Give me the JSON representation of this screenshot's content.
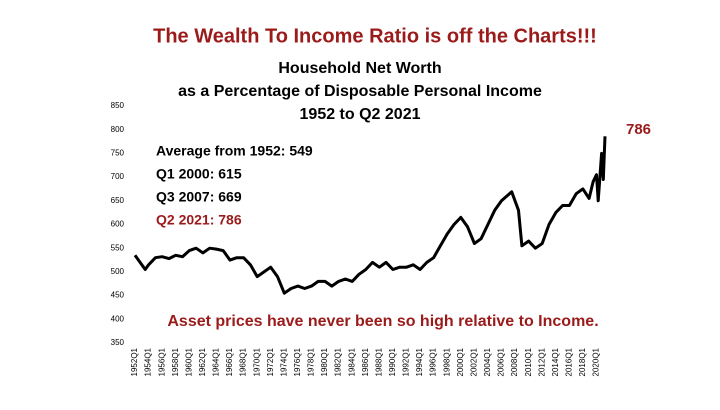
{
  "chart_data": {
    "type": "line",
    "title": "The Wealth To Income Ratio is off the Charts!!!",
    "subtitle": [
      "Household Net Worth",
      "as a Percentage of Disposable Personal Income",
      "1952 to Q2 2021"
    ],
    "annotations": [
      {
        "text": "Average from 1952: 549",
        "color": "#000000"
      },
      {
        "text": "Q1 2000:  615",
        "color": "#000000"
      },
      {
        "text": "Q3 2007:  669",
        "color": "#000000"
      },
      {
        "text": "Q2 2021:  786",
        "color": "#9b1b1b"
      }
    ],
    "end_label": "786",
    "footnote": "Asset prices have never been so high relative to Income.",
    "color": "#000000",
    "x": [
      1952,
      1953,
      1953.5,
      1954,
      1955,
      1956,
      1957,
      1958,
      1959,
      1960,
      1961,
      1962,
      1963,
      1964,
      1965,
      1966,
      1967,
      1968,
      1969,
      1970,
      1971,
      1972,
      1973,
      1974,
      1975,
      1976,
      1977,
      1978,
      1979,
      1980,
      1981,
      1982,
      1983,
      1984,
      1985,
      1986,
      1987,
      1988,
      1989,
      1990,
      1991,
      1992,
      1993,
      1994,
      1995,
      1996,
      1997,
      1998,
      1999,
      2000,
      2001,
      2002,
      2003,
      2004,
      2005,
      2006,
      2007.5,
      2008.5,
      2009,
      2010,
      2011,
      2012,
      2013,
      2014,
      2015,
      2016,
      2017,
      2018,
      2018.9,
      2019.5,
      2020,
      2020.25,
      2020.5,
      2020.75,
      2021,
      2021.25
    ],
    "values": [
      535,
      515,
      505,
      515,
      530,
      532,
      528,
      535,
      532,
      545,
      550,
      540,
      550,
      548,
      545,
      525,
      530,
      530,
      515,
      490,
      500,
      510,
      490,
      455,
      465,
      470,
      465,
      470,
      480,
      480,
      470,
      480,
      485,
      480,
      495,
      505,
      520,
      510,
      520,
      505,
      510,
      510,
      515,
      505,
      520,
      530,
      555,
      580,
      600,
      615,
      595,
      560,
      570,
      600,
      630,
      650,
      669,
      630,
      555,
      565,
      550,
      560,
      600,
      625,
      640,
      640,
      665,
      675,
      655,
      690,
      705,
      650,
      700,
      750,
      695,
      786
    ],
    "xlim": [
      1952,
      2021.25
    ],
    "xticks": [
      {
        "value": 1952,
        "label": "1952Q1"
      },
      {
        "value": 1954,
        "label": "1954Q1"
      },
      {
        "value": 1956,
        "label": "1956Q1"
      },
      {
        "value": 1958,
        "label": "1958Q1"
      },
      {
        "value": 1960,
        "label": "1960Q1"
      },
      {
        "value": 1962,
        "label": "1962Q1"
      },
      {
        "value": 1964,
        "label": "1964Q1"
      },
      {
        "value": 1966,
        "label": "1966Q1"
      },
      {
        "value": 1968,
        "label": "1968Q1"
      },
      {
        "value": 1970,
        "label": "1970Q1"
      },
      {
        "value": 1972,
        "label": "1972Q1"
      },
      {
        "value": 1974,
        "label": "1974Q1"
      },
      {
        "value": 1976,
        "label": "1976Q1"
      },
      {
        "value": 1978,
        "label": "1978Q1"
      },
      {
        "value": 1980,
        "label": "1980Q1"
      },
      {
        "value": 1982,
        "label": "1982Q1"
      },
      {
        "value": 1984,
        "label": "1984Q1"
      },
      {
        "value": 1986,
        "label": "1986Q1"
      },
      {
        "value": 1988,
        "label": "1988Q1"
      },
      {
        "value": 1990,
        "label": "1990Q1"
      },
      {
        "value": 1992,
        "label": "1992Q1"
      },
      {
        "value": 1994,
        "label": "1994Q1"
      },
      {
        "value": 1996,
        "label": "1996Q1"
      },
      {
        "value": 1998,
        "label": "1998Q1"
      },
      {
        "value": 2000,
        "label": "2000Q1"
      },
      {
        "value": 2002,
        "label": "2002Q1"
      },
      {
        "value": 2004,
        "label": "2004Q1"
      },
      {
        "value": 2006,
        "label": "2006Q1"
      },
      {
        "value": 2008,
        "label": "2008Q1"
      },
      {
        "value": 2010,
        "label": "2010Q1"
      },
      {
        "value": 2012,
        "label": "2012Q1"
      },
      {
        "value": 2014,
        "label": "2014Q1"
      },
      {
        "value": 2016,
        "label": "2016Q1"
      },
      {
        "value": 2018,
        "label": "2018Q1"
      },
      {
        "value": 2020,
        "label": "2020Q1"
      }
    ],
    "ylim": [
      350,
      850
    ],
    "yticks": [
      350,
      400,
      450,
      500,
      550,
      600,
      650,
      700,
      750,
      800,
      850
    ],
    "grid": false
  }
}
